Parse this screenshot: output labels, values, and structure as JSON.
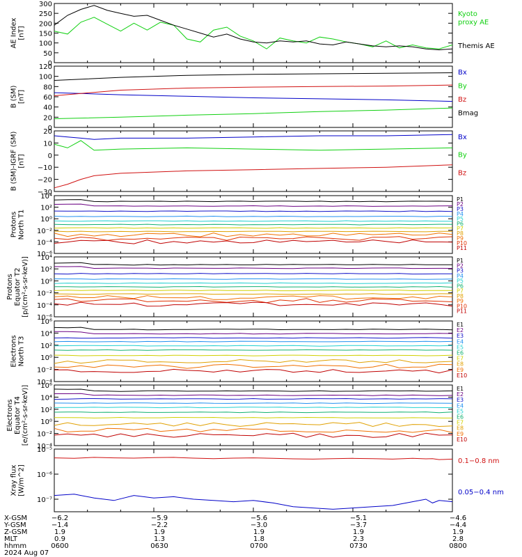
{
  "colors": {
    "black": "#000000",
    "red": "#d01010",
    "green": "#10d010",
    "blue": "#0000c8",
    "p1": "#000000",
    "p2": "#6a0082",
    "p3": "#1010c8",
    "p4": "#2090f0",
    "p5": "#20d0d0",
    "p6": "#10b070",
    "p7": "#d0d000",
    "p8": "#e0a000",
    "p9": "#f07000",
    "p10": "#e03000",
    "p11": "#c00000"
  },
  "chart_data": [
    {
      "type": "line",
      "panel": "ae",
      "ylabel": [
        "AE Index",
        "[nT]"
      ],
      "ylim": [
        0,
        300
      ],
      "yticks": [
        "0",
        "50",
        "100",
        "150",
        "200",
        "250",
        "300"
      ],
      "yticks_values": [
        0,
        50,
        100,
        150,
        200,
        250,
        300
      ],
      "x": [
        0,
        2,
        4,
        6,
        8,
        10,
        12,
        14,
        16,
        18,
        20,
        22,
        24,
        26,
        28,
        30,
        32,
        34,
        36,
        38,
        40,
        42,
        44,
        46,
        48,
        50,
        52,
        54,
        56,
        58,
        60
      ],
      "series": [
        {
          "name": "Kyoto proxy AE",
          "legend": [
            "Kyoto",
            "proxy AE"
          ],
          "color": "#10d010",
          "values": [
            160,
            145,
            205,
            230,
            195,
            160,
            200,
            165,
            205,
            190,
            120,
            105,
            165,
            180,
            135,
            110,
            70,
            125,
            110,
            100,
            130,
            120,
            105,
            95,
            80,
            110,
            75,
            90,
            75,
            70,
            90
          ]
        },
        {
          "name": "Themis AE",
          "legend": [
            "Themis AE"
          ],
          "color": "#000000",
          "values": [
            190,
            240,
            270,
            290,
            265,
            250,
            235,
            240,
            215,
            190,
            170,
            150,
            130,
            145,
            120,
            105,
            100,
            110,
            105,
            110,
            95,
            90,
            105,
            95,
            85,
            80,
            85,
            80,
            70,
            65,
            70
          ]
        }
      ]
    },
    {
      "type": "line",
      "panel": "bsm",
      "ylabel": [
        "B (SM)",
        "[nT]"
      ],
      "ylim": [
        0,
        120
      ],
      "yticks": [
        "0",
        "20",
        "40",
        "60",
        "80",
        "100",
        "120"
      ],
      "yticks_values": [
        0,
        20,
        40,
        60,
        80,
        100,
        120
      ],
      "x": [
        0,
        10,
        20,
        30,
        40,
        50,
        60
      ],
      "series": [
        {
          "name": "Bx",
          "color": "#0000c8",
          "values": [
            68,
            64,
            61,
            58,
            56,
            54,
            51
          ]
        },
        {
          "name": "By",
          "color": "#10d010",
          "values": [
            17,
            20,
            24,
            27,
            31,
            34,
            38
          ]
        },
        {
          "name": "Bz",
          "color": "#d01010",
          "values": [
            62,
            73,
            77,
            79,
            80,
            81,
            83
          ]
        },
        {
          "name": "Bmag",
          "color": "#000000",
          "values": [
            92,
            98,
            102,
            104,
            105,
            106,
            107
          ]
        }
      ]
    },
    {
      "type": "line",
      "panel": "bigrf",
      "ylabel": [
        "B (SM)-IGRF (SM)",
        "[nT]"
      ],
      "ylim": [
        -30,
        20
      ],
      "yticks": [
        "20",
        "10",
        "0",
        "−10",
        "−20",
        "−30"
      ],
      "yticks_values": [
        20,
        10,
        0,
        -10,
        -20,
        -30
      ],
      "x": [
        0,
        2,
        4,
        6,
        10,
        20,
        30,
        40,
        50,
        60
      ],
      "series": [
        {
          "name": "Bx",
          "color": "#0000c8",
          "values": [
            16,
            15,
            14,
            13,
            14,
            14,
            15,
            16,
            16,
            17
          ]
        },
        {
          "name": "By",
          "color": "#10d010",
          "values": [
            9,
            6,
            12,
            4,
            5,
            6,
            5,
            4,
            5,
            6
          ]
        },
        {
          "name": "Bz",
          "color": "#d01010",
          "values": [
            -27,
            -24,
            -20,
            -17,
            -15,
            -13,
            -12,
            -11,
            -10,
            -8
          ]
        }
      ]
    },
    {
      "type": "line",
      "panel": "pn",
      "ylabel": [
        "Protons",
        "North T1"
      ],
      "log": true,
      "ylim": [
        -6,
        4
      ],
      "yticks": [
        "10⁴",
        "10²",
        "10⁰",
        "10⁻²",
        "10⁻⁴",
        "10⁻⁶"
      ],
      "yticks_values": [
        4,
        2,
        0,
        -2,
        -4,
        -6
      ],
      "channels": [
        "P1",
        "P2",
        "P3",
        "P4",
        "P5",
        "P6",
        "P7",
        "P8",
        "P9",
        "P10",
        "P11"
      ],
      "levels": [
        3.0,
        2.2,
        1.3,
        0.4,
        -0.4,
        -1.0,
        -1.6,
        -2.2,
        -2.8,
        -3.4,
        -4.0
      ]
    },
    {
      "type": "line",
      "panel": "pe",
      "ylabel": [
        "Protons",
        "Equator T2",
        "[p/(cm²-s-sr-keV)]"
      ],
      "log": true,
      "ylim": [
        -6,
        4
      ],
      "yticks": [
        "10⁴",
        "10²",
        "10⁰",
        "10⁻²",
        "10⁻⁴",
        "10⁻⁶"
      ],
      "yticks_values": [
        4,
        2,
        0,
        -2,
        -4,
        -6
      ],
      "channels": [
        "P1",
        "P2",
        "P3",
        "P4",
        "P5",
        "P6",
        "P7",
        "P8",
        "P9",
        "P10",
        "P11"
      ],
      "levels": [
        2.7,
        2.1,
        1.2,
        0.3,
        -0.4,
        -1.0,
        -1.6,
        -2.2,
        -2.8,
        -3.3,
        -3.9
      ]
    },
    {
      "type": "line",
      "panel": "en",
      "ylabel": [
        "Electrons",
        "North T3"
      ],
      "log": true,
      "ylim": [
        -4,
        6
      ],
      "yticks": [
        "10⁶",
        "10⁴",
        "10²",
        "10⁰",
        "10⁻²",
        "10⁻⁴"
      ],
      "yticks_values": [
        6,
        4,
        2,
        0,
        -2,
        -4
      ],
      "channels": [
        "E1",
        "E2",
        "E3",
        "E4",
        "E5",
        "E6",
        "E7",
        "E8",
        "E9",
        "E10"
      ],
      "levels": [
        4.6,
        3.9,
        3.2,
        2.6,
        1.9,
        1.2,
        0.3,
        -0.7,
        -1.5,
        -2.3
      ]
    },
    {
      "type": "line",
      "panel": "ee",
      "ylabel": [
        "Electrons",
        "Equator T4",
        "[e/(cm²-s-sr-keV)]"
      ],
      "log": true,
      "ylim": [
        -4,
        6
      ],
      "yticks": [
        "10⁶",
        "10⁴",
        "10²",
        "10⁰",
        "10⁻²",
        "10⁻⁴"
      ],
      "yticks_values": [
        6,
        4,
        2,
        0,
        -2,
        -4
      ],
      "channels": [
        "E1",
        "E2",
        "E3",
        "E4",
        "E5",
        "E6",
        "E7",
        "E8",
        "E9",
        "E10"
      ],
      "levels": [
        5.0,
        4.3,
        3.7,
        3.0,
        2.3,
        1.5,
        0.6,
        -0.5,
        -1.5,
        -2.3
      ]
    },
    {
      "type": "line",
      "panel": "xray",
      "ylabel": [
        "Xray flux",
        "[W/m^2]"
      ],
      "log": true,
      "ylim": [
        -7.5,
        -5
      ],
      "yticks": [
        "10⁻⁵",
        "10⁻⁶",
        "10⁻⁷"
      ],
      "yticks_values": [
        -5,
        -6,
        -7
      ],
      "x": [
        0,
        3,
        6,
        9,
        12,
        15,
        18,
        21,
        24,
        27,
        30,
        33,
        36,
        39,
        42,
        45,
        48,
        51,
        54,
        56,
        57,
        58,
        60
      ],
      "series": [
        {
          "name": "0.1−0.8 nm",
          "color": "#d01010",
          "values": [
            -5.35,
            -5.37,
            -5.33,
            -5.35,
            -5.36,
            -5.34,
            -5.33,
            -5.36,
            -5.38,
            -5.36,
            -5.35,
            -5.37,
            -5.39,
            -5.4,
            -5.38,
            -5.37,
            -5.38,
            -5.4,
            -5.37,
            -5.39,
            -5.38,
            -5.42,
            -5.4
          ]
        },
        {
          "name": "0.05−0.4 nm",
          "color": "#0000c8",
          "values": [
            -6.85,
            -6.8,
            -6.95,
            -7.05,
            -6.85,
            -6.95,
            -6.9,
            -7.0,
            -7.05,
            -7.1,
            -7.05,
            -7.15,
            -7.3,
            -7.35,
            -7.4,
            -7.35,
            -7.3,
            -7.25,
            -7.1,
            -7.0,
            -7.15,
            -7.05,
            -7.1
          ]
        }
      ]
    }
  ],
  "footer": {
    "rows": [
      {
        "label": "X-GSM",
        "values": [
          "−6.2",
          "−5.9",
          "−5.6",
          "−5.1",
          "−4.6"
        ]
      },
      {
        "label": "Y-GSM",
        "values": [
          "−1.4",
          "−2.2",
          "−3.0",
          "−3.7",
          "−4.4"
        ]
      },
      {
        "label": "Z-GSM",
        "values": [
          "1.9",
          "1.9",
          "1.9",
          "1.9",
          "1.9"
        ]
      },
      {
        "label": "MLT",
        "values": [
          "0.9",
          "1.3",
          "1.8",
          "2.3",
          "2.8"
        ]
      },
      {
        "label": "hhmm",
        "values": [
          "0600",
          "0630",
          "0700",
          "0730",
          "0800"
        ]
      }
    ],
    "date": "2024 Aug 07"
  }
}
